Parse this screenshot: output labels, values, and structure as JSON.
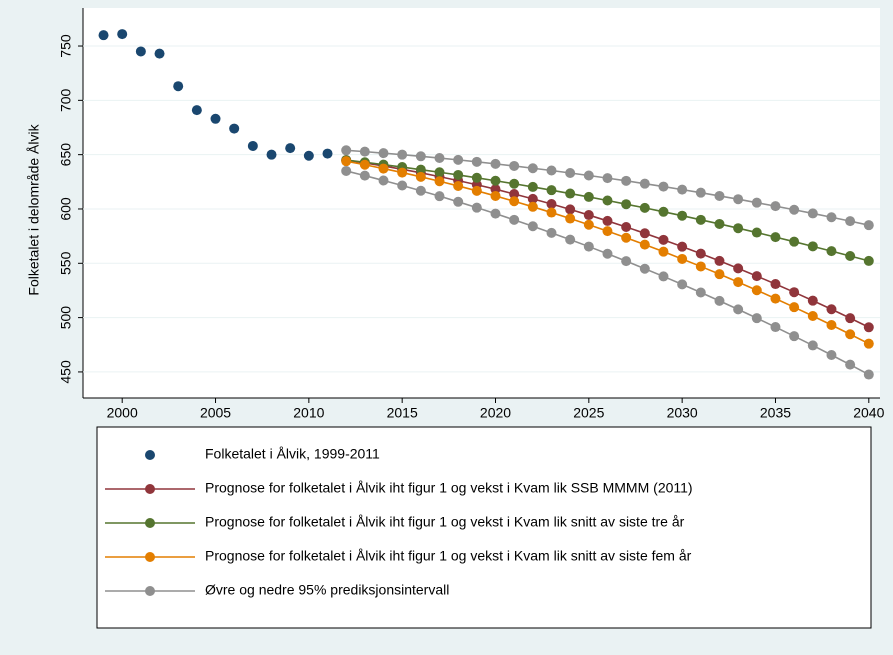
{
  "chart_data": {
    "type": "line",
    "y_label": "Folketalet i delområde Ålvik",
    "x": [
      1999,
      2000,
      2001,
      2002,
      2003,
      2004,
      2005,
      2006,
      2007,
      2008,
      2009,
      2010,
      2011,
      2012,
      2013,
      2014,
      2015,
      2016,
      2017,
      2018,
      2019,
      2020,
      2021,
      2022,
      2023,
      2024,
      2025,
      2026,
      2027,
      2028,
      2029,
      2030,
      2031,
      2032,
      2033,
      2034,
      2035,
      2036,
      2037,
      2038,
      2039,
      2040
    ],
    "xlim": [
      1997.9,
      2040.6
    ],
    "xticks": [
      2000,
      2005,
      2010,
      2015,
      2020,
      2025,
      2030,
      2035,
      2040
    ],
    "ylim": [
      426,
      785
    ],
    "yticks": [
      450,
      500,
      550,
      600,
      650,
      700,
      750
    ],
    "grid": true,
    "series": [
      {
        "name": "Folketalet i Ålvik, 1999-2011",
        "color": "#1a476f",
        "mode": "markers",
        "values": [
          760,
          761,
          745,
          743,
          713,
          691,
          683,
          674,
          658,
          650,
          656,
          649,
          651,
          null,
          null,
          null,
          null,
          null,
          null,
          null,
          null,
          null,
          null,
          null,
          null,
          null,
          null,
          null,
          null,
          null,
          null,
          null,
          null,
          null,
          null,
          null,
          null,
          null,
          null,
          null,
          null,
          null
        ]
      },
      {
        "name": "Prognose for folketalet i Ålvik iht figur 1 og vekst i Kvam lik SSB MMMM (2011)",
        "color": "#90353b",
        "mode": "lines+markers",
        "values": [
          null,
          null,
          null,
          null,
          null,
          null,
          null,
          null,
          null,
          null,
          null,
          null,
          null,
          645,
          642.4,
          639.6,
          636.5,
          633.3,
          629.8,
          626.1,
          622.3,
          618.2,
          613.8,
          609.3,
          604.6,
          599.6,
          594.4,
          589.0,
          583.4,
          577.6,
          571.6,
          565.3,
          558.9,
          552.2,
          545.3,
          538.2,
          530.9,
          523.4,
          515.6,
          507.7,
          499.5,
          491.1
        ]
      },
      {
        "name": "Prognose for folketalet i Ålvik iht figur 1 og vekst i Kvam lik snitt av siste tre år",
        "color": "#55752f",
        "mode": "lines+markers",
        "values": [
          null,
          null,
          null,
          null,
          null,
          null,
          null,
          null,
          null,
          null,
          null,
          null,
          null,
          645,
          643.0,
          640.8,
          638.6,
          636.2,
          633.8,
          631.3,
          628.7,
          626.0,
          623.2,
          620.3,
          617.3,
          614.2,
          611.1,
          607.8,
          604.4,
          601.0,
          597.4,
          593.8,
          590.0,
          586.2,
          582.3,
          578.3,
          574.1,
          569.9,
          565.6,
          561.2,
          556.7,
          552.2
        ]
      },
      {
        "name": "Prognose for folketalet i Ålvik iht figur 1 og vekst i Kvam lik snitt av siste fem år",
        "color": "#e37e00",
        "mode": "lines+markers",
        "values": [
          null,
          null,
          null,
          null,
          null,
          null,
          null,
          null,
          null,
          null,
          null,
          null,
          null,
          644,
          640.7,
          637.2,
          633.5,
          629.6,
          625.5,
          621.2,
          616.7,
          612.0,
          607.1,
          602.0,
          596.7,
          591.2,
          585.5,
          579.6,
          573.5,
          567.2,
          560.7,
          554.0,
          547.1,
          540.0,
          532.7,
          525.2,
          517.5,
          509.6,
          501.5,
          493.2,
          484.7,
          476.0
        ]
      },
      {
        "name": "Øvre og nedre 95% prediksjonsintervall",
        "color": "#8f8f8f",
        "mode": "lines+markers",
        "values": [
          null,
          null,
          null,
          null,
          null,
          null,
          null,
          null,
          null,
          null,
          null,
          null,
          null,
          654,
          652.8,
          651.4,
          650.0,
          648.5,
          646.9,
          645.2,
          643.4,
          641.5,
          639.6,
          637.5,
          635.4,
          633.1,
          630.8,
          628.4,
          625.9,
          623.3,
          620.6,
          617.8,
          615.0,
          612.0,
          609.0,
          605.8,
          602.6,
          599.3,
          595.9,
          592.4,
          588.8,
          585.1
        ]
      },
      {
        "color": "#8f8f8f",
        "mode": "lines+markers",
        "values": [
          null,
          null,
          null,
          null,
          null,
          null,
          null,
          null,
          null,
          null,
          null,
          null,
          null,
          635,
          630.7,
          626.2,
          621.6,
          616.8,
          611.8,
          606.6,
          601.2,
          595.7,
          590.0,
          584.1,
          578.0,
          571.8,
          565.4,
          558.8,
          552.0,
          545.0,
          537.9,
          530.6,
          523.1,
          515.4,
          507.6,
          499.5,
          491.3,
          482.9,
          474.4,
          465.6,
          456.7,
          447.6
        ]
      }
    ]
  }
}
